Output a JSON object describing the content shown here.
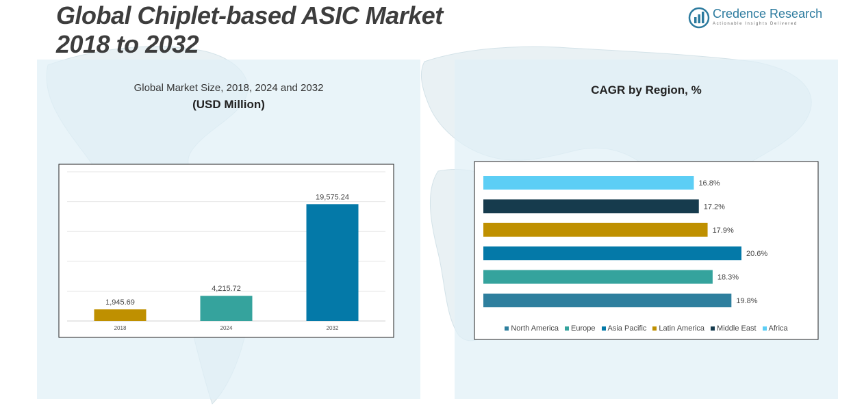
{
  "header": {
    "title_line1": "Global Chiplet-based ASIC Market",
    "title_line2": "2018 to 2032"
  },
  "logo": {
    "name": "Credence Research",
    "tagline": "Actionable Insights Delivered"
  },
  "chart_data": [
    {
      "type": "bar",
      "title": "Global Market Size, 2018, 2024 and 2032",
      "subtitle": "(USD Million)",
      "categories": [
        "2018",
        "2024",
        "2032"
      ],
      "values": [
        1945.69,
        4215.72,
        19575.24
      ],
      "value_labels": [
        "1,945.69",
        "4,215.72",
        "19,575.24"
      ],
      "colors": [
        "#BF9000",
        "#35A39D",
        "#0479A8"
      ],
      "ylim": [
        0,
        25000
      ],
      "grid": true
    },
    {
      "type": "bar",
      "orientation": "horizontal",
      "title": "CAGR by Region, %",
      "categories": [
        "North America",
        "Europe",
        "Asia Pacific",
        "Latin America",
        "Middle East",
        "Africa"
      ],
      "values": [
        19.8,
        18.3,
        20.6,
        17.9,
        17.2,
        16.8
      ],
      "value_labels": [
        "19.8%",
        "18.3%",
        "20.6%",
        "17.9%",
        "17.2%",
        "16.8%"
      ],
      "colors": [
        "#2E7F9E",
        "#35A39D",
        "#0479A8",
        "#BF9000",
        "#163B4D",
        "#5CCEF5"
      ],
      "xlim": [
        0,
        24
      ],
      "legend": "bottom"
    }
  ]
}
